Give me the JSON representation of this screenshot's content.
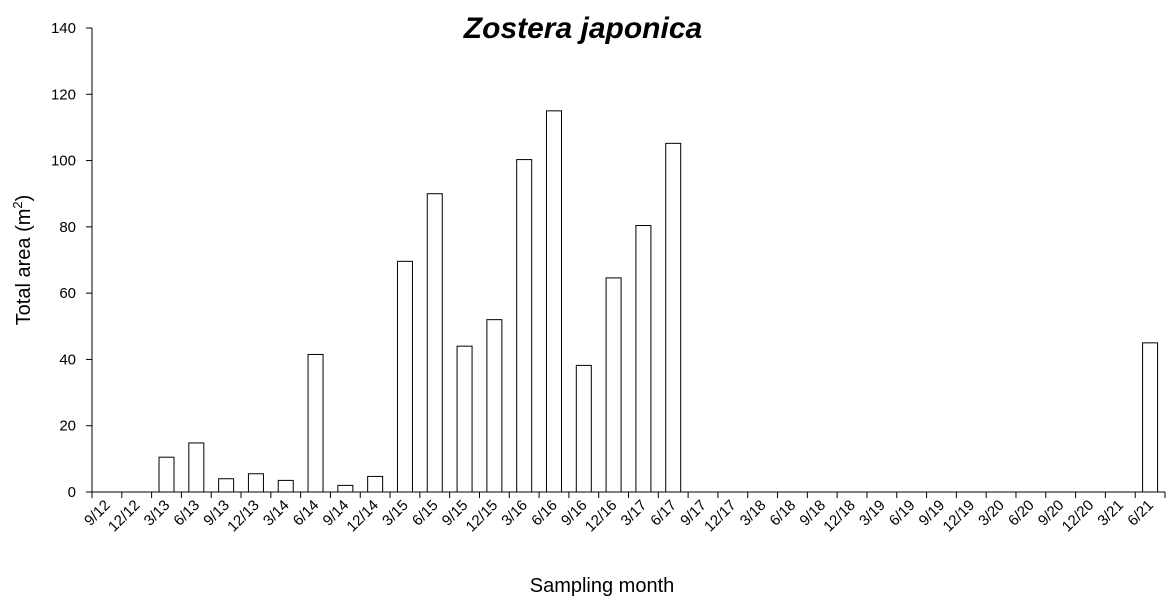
{
  "chart_data": {
    "type": "bar",
    "title": "Zostera japonica",
    "xlabel": "Sampling month",
    "ylabel": "Total area (m",
    "ylabel_superscript": "2",
    "ylabel_suffix": ")",
    "ylim": [
      0,
      140
    ],
    "yticks": [
      0,
      20,
      40,
      60,
      80,
      100,
      120,
      140
    ],
    "grid": false,
    "categories": [
      "9/12",
      "12/12",
      "3/13",
      "6/13",
      "9/13",
      "12/13",
      "3/14",
      "6/14",
      "9/14",
      "12/14",
      "3/15",
      "6/15",
      "9/15",
      "12/15",
      "3/16",
      "6/16",
      "9/16",
      "12/16",
      "3/17",
      "6/17",
      "9/17",
      "12/17",
      "3/18",
      "6/18",
      "9/18",
      "12/18",
      "3/19",
      "6/19",
      "9/19",
      "12/19",
      "3/20",
      "6/20",
      "9/20",
      "12/20",
      "3/21",
      "6/21"
    ],
    "values": [
      0,
      0,
      10.5,
      14.8,
      4,
      5.5,
      3.5,
      41.5,
      2,
      4.7,
      69.6,
      90,
      44,
      52,
      100.3,
      115,
      38.2,
      64.6,
      80.4,
      105.2,
      0,
      0,
      0,
      0,
      0,
      0,
      0,
      0,
      0,
      0,
      0,
      0,
      0,
      0,
      0,
      45
    ],
    "bar_fill": "#ffffff",
    "bar_stroke": "#000000"
  }
}
